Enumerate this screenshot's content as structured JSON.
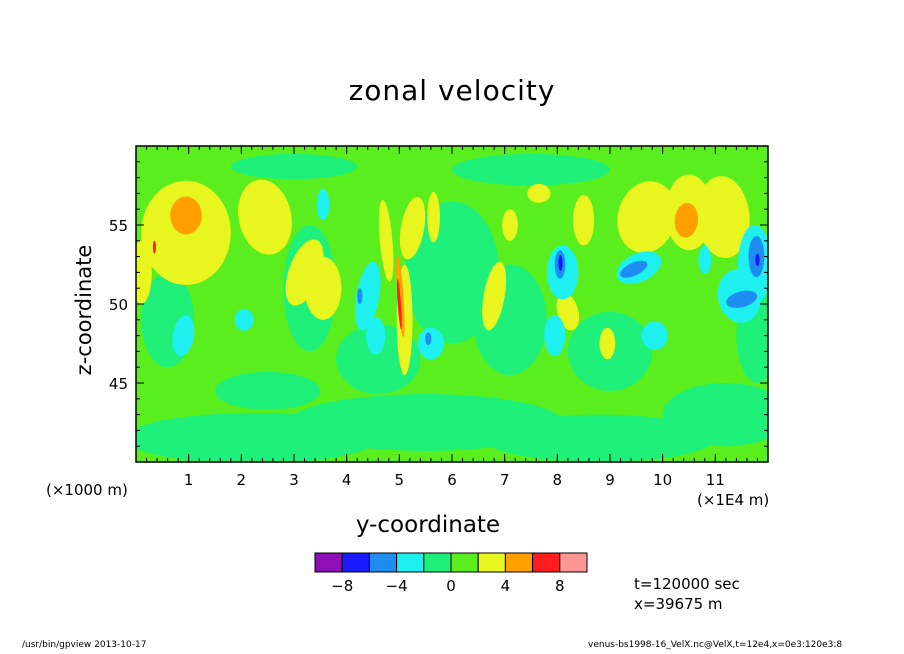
{
  "chart_data": {
    "type": "heatmap",
    "title": "zonal velocity",
    "xlabel": "y-coordinate",
    "ylabel": "z-coordinate",
    "x_multiplier_label": "(×1000 m)",
    "x_unit_label": "(×1E4 m)",
    "x_ticks": [
      "1",
      "2",
      "3",
      "4",
      "5",
      "6",
      "7",
      "8",
      "9",
      "10",
      "11"
    ],
    "y_ticks": [
      "45",
      "50",
      "55"
    ],
    "xlim": [
      0,
      12
    ],
    "ylim": [
      40,
      60
    ],
    "colorbar": {
      "tick_labels": [
        "-8",
        "-4",
        "0",
        "4",
        "8"
      ],
      "levels": [
        -10,
        -8,
        -6,
        -4,
        -2,
        0,
        2,
        4,
        6,
        8,
        10
      ],
      "colors": [
        "#8e0fb5",
        "#1a1aff",
        "#1e8cf0",
        "#1ef0f0",
        "#1ef07a",
        "#5aee1e",
        "#e8f51e",
        "#ffa000",
        "#ff1e1e",
        "#ff9696"
      ]
    },
    "background_color": "#5aee1e",
    "features": [
      {
        "y": 0.85,
        "z": 55.2,
        "value": 6
      },
      {
        "y": 10.45,
        "z": 55.3,
        "value": 6
      },
      {
        "y": 8.05,
        "z": 52.5,
        "value": -8
      },
      {
        "y": 11.75,
        "z": 53.0,
        "value": -8
      },
      {
        "y": 11.45,
        "z": 50.4,
        "value": -6
      },
      {
        "y": 9.45,
        "z": 52.0,
        "value": -5
      },
      {
        "y": 5.0,
        "z": 50.0,
        "value": 7
      },
      {
        "y": 4.25,
        "z": 50.5,
        "value": -4
      }
    ]
  },
  "info": {
    "time": "t=120000 sec",
    "position": "x=39675 m"
  },
  "footer": {
    "left": "/usr/bin/gpview   2013-10-17",
    "right": "venus-bs1998-16_VelX.nc@VelX,t=12e4,x=0e3:120e3:8"
  }
}
